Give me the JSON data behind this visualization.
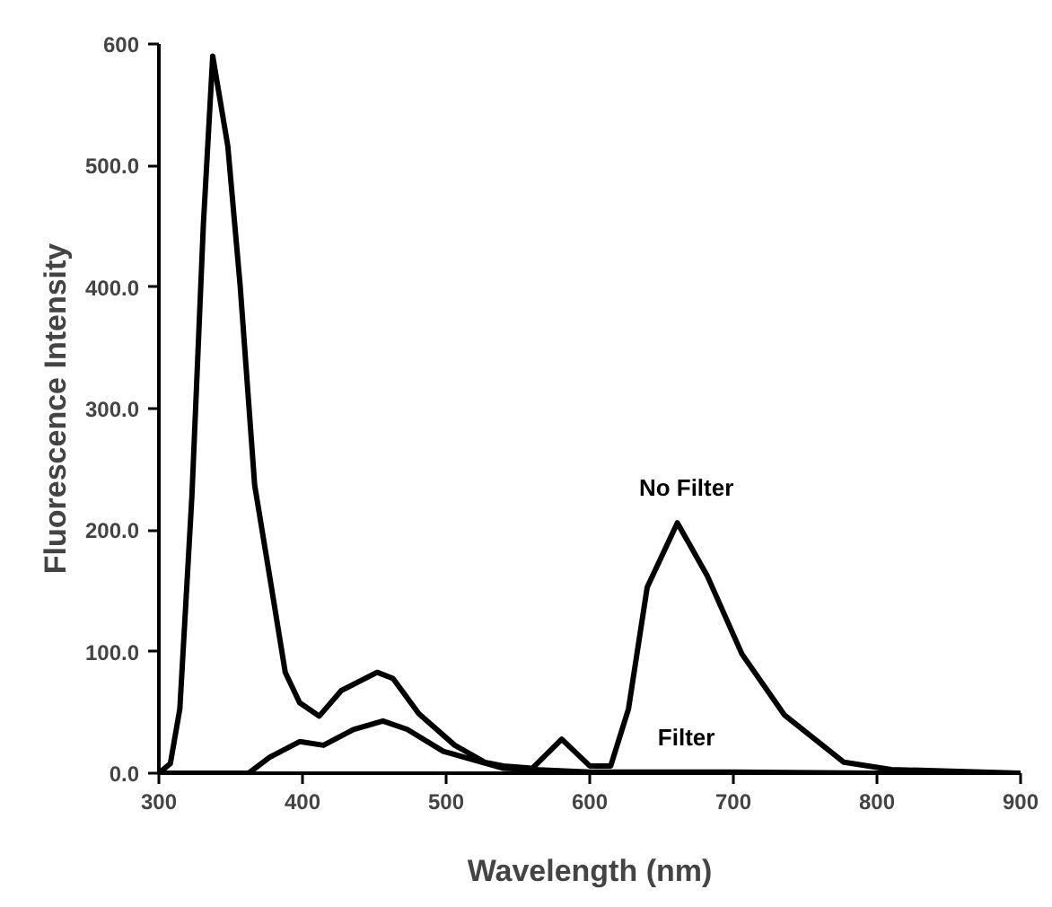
{
  "chart_data": {
    "type": "line",
    "xlabel": "Wavelength (nm)",
    "ylabel": "Fluorescence Intensity",
    "series": [
      {
        "name": "No Filter",
        "color": "#000000",
        "x": [
          300,
          308,
          314.6,
          323,
          331,
          337.5,
          348,
          356.6,
          366.7,
          377,
          388,
          398,
          411.7,
          427,
          452,
          463,
          481,
          506,
          527,
          540,
          560,
          580.5,
          600,
          614.6,
          627,
          640,
          661,
          681.6,
          706,
          735.5,
          777,
          810,
          900
        ],
        "values": [
          0,
          8,
          53,
          228,
          452,
          590,
          516,
          401,
          237,
          163,
          83,
          58,
          47,
          68,
          83,
          78,
          49,
          23,
          9,
          6,
          4,
          28,
          6,
          6,
          53,
          153,
          206,
          163,
          98,
          48,
          9,
          3,
          0
        ]
      },
      {
        "name": "Filter",
        "color": "#000000",
        "x": [
          300,
          362.5,
          377,
          398,
          414.6,
          435.5,
          456,
          473,
          498,
          540,
          600,
          700,
          800,
          900
        ],
        "values": [
          0,
          0,
          13,
          26,
          23,
          36,
          43,
          36,
          18,
          4,
          1,
          1,
          0,
          0
        ]
      }
    ],
    "xlim": [
      300,
      900
    ],
    "xticks": [
      300,
      400,
      500,
      600,
      700,
      800,
      900
    ],
    "ylim": [
      0,
      600
    ],
    "yticks": [
      {
        "value": 0,
        "label": "0.0"
      },
      {
        "value": 100,
        "label": "100.0"
      },
      {
        "value": 200,
        "label": "200.0"
      },
      {
        "value": 300,
        "label": "300.0"
      },
      {
        "value": 400,
        "label": "400.0"
      },
      {
        "value": 500,
        "label": "500.0"
      },
      600
    ],
    "grid": false,
    "legend": false,
    "marker": "none",
    "line_style": "solid"
  }
}
